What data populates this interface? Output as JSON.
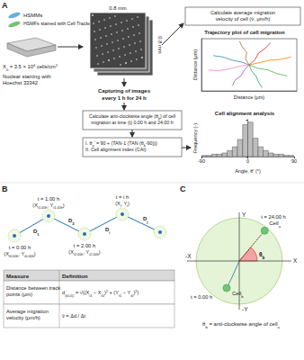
{
  "chart_data": [
    {
      "type": "line",
      "title": "Trajectory plot of cell migration",
      "x_label": "Distance (μm)",
      "y_label": "Distance (μm)",
      "xlim": [
        -200,
        200
      ],
      "ylim": [
        -200,
        200
      ],
      "xticks": [
        -200,
        -100,
        0,
        100,
        200
      ],
      "yticks": [
        -200,
        -100,
        0,
        100,
        200
      ],
      "tick_labels": false,
      "grid": false,
      "series": [
        {
          "color": "#e41a1c",
          "values": [
            [
              0,
              0
            ],
            [
              25,
              40
            ],
            [
              40,
              90
            ],
            [
              70,
              130
            ],
            [
              90,
              170
            ]
          ]
        },
        {
          "color": "#377eb8",
          "values": [
            [
              0,
              0
            ],
            [
              -30,
              20
            ],
            [
              -70,
              35
            ],
            [
              -110,
              60
            ],
            [
              -150,
              70
            ]
          ]
        },
        {
          "color": "#4daf4a",
          "values": [
            [
              0,
              0
            ],
            [
              35,
              -25
            ],
            [
              80,
              -40
            ],
            [
              120,
              -70
            ],
            [
              160,
              -85
            ]
          ]
        },
        {
          "color": "#984ea3",
          "values": [
            [
              0,
              0
            ],
            [
              -20,
              -40
            ],
            [
              -35,
              -85
            ],
            [
              -60,
              -120
            ],
            [
              -70,
              -160
            ]
          ]
        },
        {
          "color": "#ff7f00",
          "values": [
            [
              0,
              0
            ],
            [
              40,
              15
            ],
            [
              85,
              35
            ],
            [
              130,
              40
            ],
            [
              175,
              60
            ]
          ]
        },
        {
          "color": "#a6761d",
          "values": [
            [
              0,
              0
            ],
            [
              -15,
              45
            ],
            [
              -10,
              95
            ],
            [
              -30,
              140
            ],
            [
              -40,
              180
            ]
          ]
        },
        {
          "color": "#f781bf",
          "values": [
            [
              0,
              0
            ],
            [
              -40,
              -10
            ],
            [
              -80,
              -30
            ],
            [
              -130,
              -45
            ],
            [
              -170,
              -40
            ]
          ]
        },
        {
          "color": "#1b9e77",
          "values": [
            [
              0,
              0
            ],
            [
              10,
              -45
            ],
            [
              30,
              -90
            ],
            [
              40,
              -135
            ],
            [
              55,
              -175
            ]
          ]
        }
      ]
    },
    {
      "type": "histogram",
      "title": "Cell alignment analysis",
      "x_label": "Angle, θ' (°)",
      "y_label": "Frequency (-)",
      "bins": [
        -90,
        -80,
        -70,
        -60,
        -50,
        -40,
        -30,
        -20,
        -10,
        0,
        10,
        20,
        30,
        40,
        50,
        60,
        70,
        80,
        90
      ],
      "counts": [
        1,
        1,
        2,
        2,
        3,
        5,
        8,
        14,
        26,
        28,
        15,
        8,
        5,
        3,
        2,
        2,
        1,
        1
      ],
      "color": "#bdbdbd",
      "xlim": [
        -90,
        90
      ],
      "xticks": [
        -90,
        0,
        90
      ],
      "ylim": [
        0,
        30
      ],
      "yticks": [
        0,
        10,
        20,
        30
      ],
      "tick_labels": "x",
      "grid": false
    }
  ],
  "diagram": {
    "A": {
      "label": "A",
      "cell_types": [
        "HSMMs",
        "HSMFs stained with Cell Tracker Green™"
      ],
      "seeding": [
        [
          "X",
          {
            "sub": "0"
          },
          " = 3.5 × 10",
          {
            "sup": "4"
          },
          " cells/cm",
          {
            "sup": "2"
          }
        ]
      ],
      "staining": [
        "Nuclear staining with",
        "Hoechst 33342"
      ],
      "field_width": "0.8 mm",
      "field_height": "0.8 mm",
      "imaging": [
        "Capturing of images",
        "every 1 h for 24 h"
      ],
      "velocity_box": [
        "Calculate average migration",
        "velocity of cell (v̄, μm/h)"
      ],
      "angle_box": [
        [
          "Calculate anti-clockwise angle (θ",
          {
            "sub": "b"
          },
          ") of cell"
        ],
        "migration at time (t) 0.00 h and 24.00 h"
      ],
      "formula_box": [
        [
          "I. θ",
          {
            "sub": "a"
          },
          "' = 90 + (TAN-1 (TAN (θ",
          {
            "sub": "b"
          },
          "-90)))"
        ],
        "II. Cell alignment index (CAI)"
      ]
    },
    "B": {
      "label": "B",
      "points": [
        {
          "time": "t = 0.00 h",
          "coord": [
            "(X",
            {
              "sub": "t0.00h"
            },
            ", Y",
            {
              "sub": "t0.00h"
            },
            ")"
          ]
        },
        {
          "time": "t = 1.00 h",
          "coord": [
            "(X",
            {
              "sub": "t1.00h"
            },
            ", Y",
            {
              "sub": "t1.00h"
            },
            ")"
          ]
        },
        {
          "time": "t = 2.00 h",
          "coord": [
            "(X",
            {
              "sub": "t2.00h"
            },
            ", Y",
            {
              "sub": "t2.00h"
            },
            ")"
          ]
        },
        {
          "time": "t = i h",
          "coord": [
            "(X",
            {
              "sub": "i"
            },
            ", Y",
            {
              "sub": "i"
            },
            ")"
          ]
        }
      ],
      "segments": [
        [
          "D",
          {
            "sub": "1"
          }
        ],
        [
          "D",
          {
            "sub": "2"
          }
        ],
        [
          "D",
          {
            "sub": "i"
          }
        ],
        [
          "D",
          {
            "sub": "j"
          }
        ]
      ],
      "table": {
        "header": [
          "Measure",
          "Definition"
        ],
        "rows": [
          [
            [
              "Distance between track",
              "points (μm)"
            ],
            [
              [
                "d",
                {
                  "sub": "(t0,t1)"
                },
                " = √((X",
                {
                  "sub": "t1"
                },
                " − X",
                {
                  "sub": "t0"
                },
                ")",
                {
                  "sup": "2"
                },
                " + (Y",
                {
                  "sub": "t1"
                },
                " − Y",
                {
                  "sub": "t0"
                },
                ")",
                {
                  "sup": "2"
                },
                ")"
              ]
            ]
          ],
          [
            [
              "Average migration",
              "velocity (μm/h)"
            ],
            [
              "v̄ = Δd / Δt"
            ]
          ]
        ]
      }
    },
    "C": {
      "label": "C",
      "x_pos": "X",
      "x_neg": "-X",
      "y_pos": "Y",
      "y_neg": "-Y",
      "angle": [
        "θ",
        {
          "sub": "b"
        }
      ],
      "cell_end": [
        "Cell",
        {
          "sub": "a"
        }
      ],
      "cell_start": [
        "Cell",
        {
          "sub": "b"
        }
      ],
      "time_end": "t = 24.00 h",
      "time_start": "t = 0.00 h",
      "caption": [
        [
          "θ",
          {
            "sub": "b"
          },
          " = anti-clockwise angle of cell",
          {
            "sub": "a"
          }
        ]
      ]
    }
  }
}
